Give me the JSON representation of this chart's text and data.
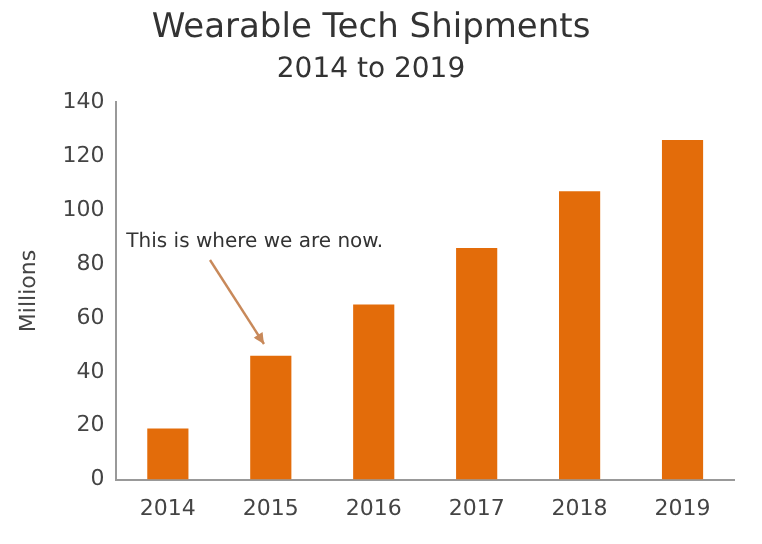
{
  "chart_data": {
    "type": "bar",
    "title": "Wearable Tech Shipments",
    "subtitle": "2014 to 2019",
    "ylabel": "Millions",
    "categories": [
      "2014",
      "2015",
      "2016",
      "2017",
      "2018",
      "2019"
    ],
    "values": [
      19,
      46,
      65,
      86,
      107,
      126
    ],
    "color": "#e36c0a",
    "ylim": [
      0,
      140
    ],
    "yticks": [
      0,
      20,
      40,
      60,
      80,
      100,
      120,
      140
    ],
    "grid": false,
    "legend": false,
    "annotations": [
      {
        "text": "This is where we are now.",
        "x": "2015",
        "y": 46
      }
    ]
  }
}
